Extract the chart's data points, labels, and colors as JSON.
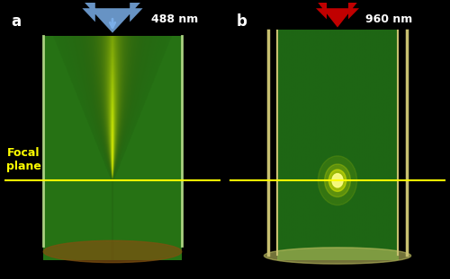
{
  "fig_width": 5.0,
  "fig_height": 3.11,
  "dpi": 100,
  "background_color": "#000000",
  "panel_a": {
    "label": "a",
    "arrow_color": "#7aaee8",
    "arrow_label": "488 nm",
    "arrow_label_color": "#ffffff",
    "cuvette_color": "#4a8a30",
    "fluorescence_color_center": "#ffff00",
    "fluorescence_color_edge": "#88cc00"
  },
  "panel_b": {
    "label": "b",
    "arrow_color": "#cc0000",
    "arrow_label": "960 nm",
    "arrow_label_color": "#ffffff",
    "cuvette_color": "#3a7a28"
  },
  "focal_line_color": "#ffff00",
  "focal_label": "Focal\nplane",
  "focal_label_color": "#ffff00",
  "focal_label_fontsize": 9
}
